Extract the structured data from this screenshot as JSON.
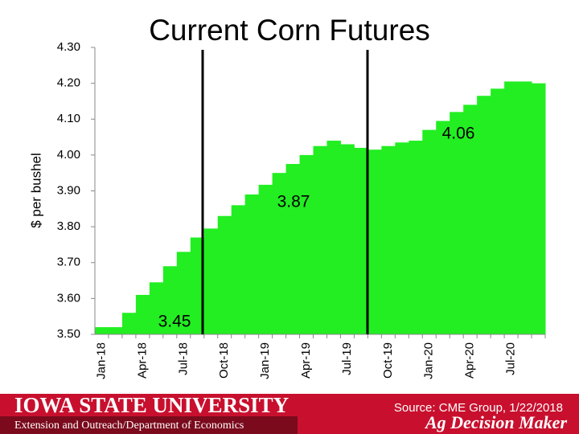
{
  "chart_data": {
    "type": "step-area",
    "title": "Current Corn Futures",
    "y_label": "$ per bushel",
    "source": "Source: CME Group, 1/22/2018",
    "categories": [
      "Jan-18",
      null,
      null,
      "Apr-18",
      null,
      null,
      "Jul-18",
      null,
      null,
      "Oct-18",
      null,
      null,
      "Jan-19",
      null,
      null,
      "Apr-19",
      null,
      null,
      "Jul-19",
      null,
      null,
      "Oct-19",
      null,
      null,
      "Jan-20",
      null,
      null,
      "Apr-20",
      null,
      null,
      "Jul-20",
      null,
      null
    ],
    "values": [
      3.52,
      3.52,
      3.56,
      3.61,
      3.645,
      3.69,
      3.73,
      3.77,
      3.795,
      3.83,
      3.86,
      3.89,
      3.917,
      3.95,
      3.975,
      4.0,
      4.025,
      4.04,
      4.03,
      4.02,
      4.015,
      4.025,
      4.035,
      4.04,
      4.07,
      4.095,
      4.12,
      4.14,
      4.165,
      4.185,
      4.205,
      4.205,
      4.2
    ],
    "color": "#22ee22",
    "ylim": [
      3.5,
      4.3
    ],
    "yticks": [
      {
        "value": 3.5,
        "label": "3.50"
      },
      {
        "value": 3.6,
        "label": "3.60"
      },
      {
        "value": 3.7,
        "label": "3.70"
      },
      {
        "value": 3.8,
        "label": "3.80"
      },
      {
        "value": 3.9,
        "label": "3.90"
      },
      {
        "value": 4.0,
        "label": "4.00"
      },
      {
        "value": 4.1,
        "label": "4.10"
      },
      {
        "value": 4.2,
        "label": "4.20"
      },
      {
        "value": 4.3,
        "label": "4.30"
      }
    ],
    "annotations": [
      "3.45",
      "3.87",
      "4.06"
    ]
  },
  "footer": {
    "university": "IOWA STATE UNIVERSITY",
    "department": "Extension and Outreach/Department of Economics",
    "brand": "Ag Decision Maker"
  }
}
